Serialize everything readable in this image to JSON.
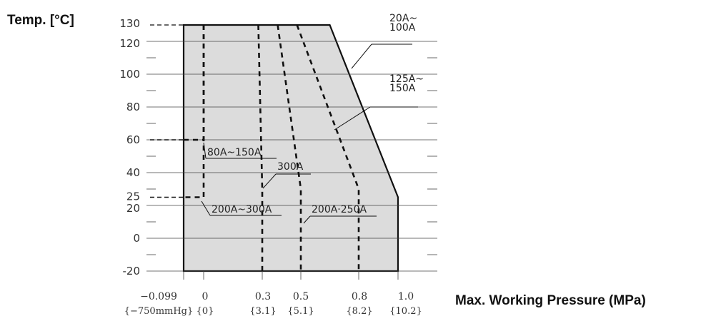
{
  "chart_data": {
    "type": "area",
    "ylabel": "Temp. [°C]",
    "xlabel": "Max. Working Pressure (MPa)",
    "ylim": [
      -20,
      130
    ],
    "xlim": [
      -0.099,
      1.0
    ],
    "y_ticks": [
      {
        "value": -20,
        "label": "-20"
      },
      {
        "value": 0,
        "label": "0"
      },
      {
        "value": 20,
        "label": "20"
      },
      {
        "value": 25,
        "label": "25"
      },
      {
        "value": 40,
        "label": "40"
      },
      {
        "value": 60,
        "label": "60"
      },
      {
        "value": 80,
        "label": "80"
      },
      {
        "value": 100,
        "label": "100"
      },
      {
        "value": 120,
        "label": "120"
      },
      {
        "value": 130,
        "label": "130"
      }
    ],
    "x_ticks": [
      {
        "value": -0.099,
        "label": "−0.099",
        "sub": "{−750mmHg}"
      },
      {
        "value": 0,
        "label": "0",
        "sub": "{0}"
      },
      {
        "value": 0.3,
        "label": "0.3",
        "sub": "{3.1}"
      },
      {
        "value": 0.5,
        "label": "0.5",
        "sub": "{5.1}"
      },
      {
        "value": 0.8,
        "label": "0.8",
        "sub": "{8.2}"
      },
      {
        "value": 1.0,
        "label": "1.0",
        "sub": "{10.2}"
      }
    ],
    "envelope": {
      "name": "20A~100A",
      "points": [
        {
          "x": -0.099,
          "y": -20
        },
        {
          "x": -0.099,
          "y": 130
        },
        {
          "x": 0.65,
          "y": 130
        },
        {
          "x": 1.0,
          "y": 25
        },
        {
          "x": 1.0,
          "y": -20
        }
      ]
    },
    "limit_curves": [
      {
        "name": "80A~150A",
        "points": [
          {
            "x": 0,
            "y": 130
          },
          {
            "x": 0,
            "y": 60
          },
          {
            "x": -0.099,
            "y": 60
          }
        ]
      },
      {
        "name": "200A~300A",
        "points": [
          {
            "x": 0,
            "y": 130
          },
          {
            "x": 0,
            "y": 25
          },
          {
            "x": -0.099,
            "y": 25
          }
        ]
      },
      {
        "name": "300A",
        "points": [
          {
            "x": 0.28,
            "y": 130
          },
          {
            "x": 0.3,
            "y": 30
          },
          {
            "x": 0.3,
            "y": -20
          }
        ]
      },
      {
        "name": "200A·250A",
        "points": [
          {
            "x": 0.38,
            "y": 130
          },
          {
            "x": 0.5,
            "y": 30
          },
          {
            "x": 0.5,
            "y": -20
          }
        ]
      },
      {
        "name": "125A~150A",
        "points": [
          {
            "x": 0.48,
            "y": 130
          },
          {
            "x": 0.8,
            "y": 30
          },
          {
            "x": 0.8,
            "y": -20
          }
        ]
      }
    ],
    "annotations": [
      {
        "lines": [
          "20A~",
          "100A"
        ]
      },
      {
        "lines": [
          "125A~",
          "150A"
        ]
      },
      {
        "lines": [
          "80A~150A"
        ]
      },
      {
        "lines": [
          "300A"
        ]
      },
      {
        "lines": [
          "200A~300A"
        ]
      },
      {
        "lines": [
          "200A·250A"
        ]
      }
    ],
    "grid": true
  },
  "colors": {
    "fill": "#dcdcdc",
    "line": "#111111",
    "grid": "#444444"
  }
}
